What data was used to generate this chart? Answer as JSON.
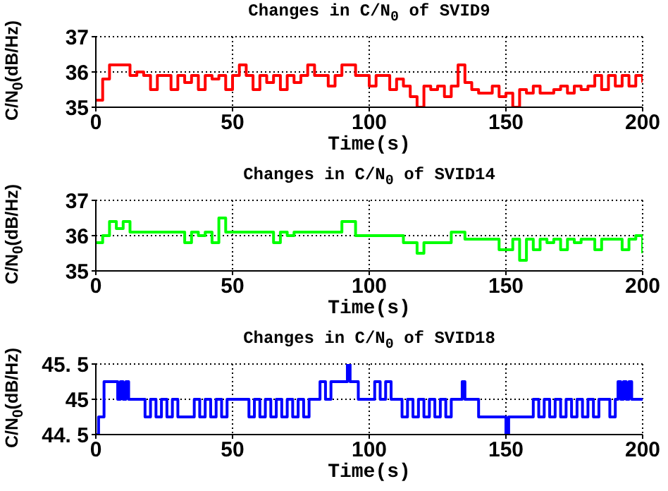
{
  "chart_data": [
    {
      "type": "step",
      "title": "Changes in C/N$_{0}$ of SVID9",
      "xlabel": "Time(s)",
      "ylabel": "C/N$_{0}$(dB/Hz)",
      "xlim": [
        0,
        200
      ],
      "xticks": [
        0,
        50,
        100,
        150,
        200
      ],
      "ylim": [
        35,
        37
      ],
      "yticks": [
        35,
        36,
        37
      ],
      "grid": true,
      "x": [
        0,
        2.5,
        5,
        7.5,
        10,
        12.5,
        15,
        17.5,
        20,
        22.5,
        25,
        27.5,
        30,
        32.5,
        35,
        37.5,
        40,
        42.5,
        45,
        47.5,
        50,
        52.5,
        55,
        57.5,
        60,
        62.5,
        65,
        67.5,
        70,
        72.5,
        75,
        77.5,
        80,
        82.5,
        85,
        87.5,
        90,
        92.5,
        95,
        97.5,
        100,
        102.5,
        105,
        107.5,
        110,
        112.5,
        115,
        117.5,
        120,
        122.5,
        125,
        127.5,
        130,
        132.5,
        135,
        137.5,
        140,
        142.5,
        145,
        147.5,
        150,
        152.5,
        155,
        157.5,
        160,
        162.5,
        165,
        167.5,
        170,
        172.5,
        175,
        177.5,
        180,
        182.5,
        185,
        187.5,
        190,
        192.5,
        195,
        197.5,
        200
      ],
      "series": [
        {
          "color": "#ff0000",
          "values": [
            35.2,
            35.8,
            36.2,
            36.2,
            36.2,
            35.9,
            36.0,
            35.9,
            35.5,
            35.9,
            35.9,
            35.5,
            35.9,
            35.7,
            35.9,
            35.5,
            35.9,
            35.8,
            35.9,
            35.5,
            35.9,
            36.2,
            35.9,
            35.5,
            35.9,
            35.7,
            35.9,
            35.5,
            35.9,
            35.7,
            35.9,
            36.2,
            35.9,
            35.9,
            35.6,
            35.9,
            36.2,
            36.2,
            35.9,
            35.9,
            35.6,
            35.9,
            35.9,
            35.5,
            35.8,
            35.6,
            35.3,
            35.0,
            35.6,
            35.5,
            35.6,
            35.3,
            35.6,
            36.2,
            35.7,
            35.5,
            35.4,
            35.4,
            35.6,
            35.3,
            35.4,
            35.0,
            35.5,
            35.4,
            35.6,
            35.4,
            35.4,
            35.5,
            35.6,
            35.4,
            35.6,
            35.5,
            35.6,
            35.9,
            35.5,
            35.9,
            35.6,
            35.9,
            35.6,
            35.9,
            35.7
          ]
        }
      ]
    },
    {
      "type": "step",
      "title": "Changes in C/N$_{0}$ of SVID14",
      "xlabel": "Time(s)",
      "ylabel": "C/N$_{0}$(dB/Hz)",
      "xlim": [
        0,
        200
      ],
      "xticks": [
        0,
        50,
        100,
        150,
        200
      ],
      "ylim": [
        35,
        37
      ],
      "yticks": [
        35,
        36,
        37
      ],
      "grid": true,
      "x": [
        0,
        2.5,
        5,
        7.5,
        10,
        12.5,
        15,
        17.5,
        20,
        22.5,
        25,
        27.5,
        30,
        32.5,
        35,
        37.5,
        40,
        42.5,
        45,
        47.5,
        50,
        52.5,
        55,
        57.5,
        60,
        62.5,
        65,
        67.5,
        70,
        72.5,
        75,
        77.5,
        80,
        82.5,
        85,
        87.5,
        90,
        92.5,
        95,
        97.5,
        100,
        102.5,
        105,
        107.5,
        110,
        112.5,
        115,
        117.5,
        120,
        122.5,
        125,
        127.5,
        130,
        132.5,
        135,
        137.5,
        140,
        142.5,
        145,
        147.5,
        150,
        152.5,
        155,
        157.5,
        160,
        162.5,
        165,
        167.5,
        170,
        172.5,
        175,
        177.5,
        180,
        182.5,
        185,
        187.5,
        190,
        192.5,
        195,
        197.5,
        200
      ],
      "series": [
        {
          "color": "#00ff00",
          "values": [
            35.8,
            36.0,
            36.4,
            36.2,
            36.4,
            36.1,
            36.1,
            36.1,
            36.1,
            36.1,
            36.1,
            36.1,
            36.1,
            35.8,
            36.1,
            36.0,
            36.1,
            35.8,
            36.5,
            36.1,
            36.1,
            36.1,
            36.1,
            36.1,
            36.1,
            36.1,
            35.8,
            36.1,
            36.0,
            36.1,
            36.1,
            36.1,
            36.1,
            36.1,
            36.1,
            36.1,
            36.4,
            36.4,
            36.0,
            36.0,
            36.0,
            36.0,
            36.0,
            36.0,
            36.0,
            35.8,
            35.8,
            35.5,
            35.8,
            35.8,
            35.8,
            35.8,
            36.1,
            36.1,
            35.9,
            35.9,
            35.9,
            35.9,
            35.9,
            35.6,
            35.6,
            35.9,
            35.3,
            35.9,
            35.6,
            35.9,
            35.8,
            35.9,
            35.6,
            35.9,
            35.8,
            35.9,
            35.9,
            35.6,
            35.9,
            35.9,
            35.9,
            35.6,
            35.9,
            36.0,
            35.5
          ]
        }
      ]
    },
    {
      "type": "step",
      "title": "Changes in C/N$_{0}$ of SVID18",
      "xlabel": "Time(s)",
      "ylabel": "C/N$_{0}$(dB/Hz)",
      "xlim": [
        0,
        200
      ],
      "xticks": [
        0,
        50,
        100,
        150,
        200
      ],
      "ylim": [
        44.5,
        45.5
      ],
      "yticks": [
        44.5,
        45,
        45.5
      ],
      "grid": true,
      "x": [
        0,
        1,
        2,
        3,
        5,
        7.5,
        8,
        9,
        10,
        11,
        12,
        14,
        17,
        18,
        20,
        22,
        24,
        26,
        28,
        30,
        35,
        36,
        38,
        40,
        42,
        44,
        46,
        48,
        50,
        55,
        56,
        58,
        60,
        62,
        64,
        66,
        68,
        70,
        72,
        74,
        76,
        78,
        80,
        82,
        84,
        86,
        88,
        90,
        91,
        92,
        93,
        95,
        96,
        100,
        102,
        104,
        106,
        108,
        110,
        112,
        114,
        116,
        118,
        120,
        122,
        124,
        126,
        128,
        130,
        134,
        135,
        136,
        140,
        150,
        151,
        158,
        160,
        162,
        164,
        166,
        168,
        170,
        172,
        174,
        176,
        178,
        180,
        182,
        184,
        186,
        188,
        190,
        191,
        192,
        193,
        194,
        195,
        196,
        200
      ],
      "series": [
        {
          "color": "#0000ff",
          "values": [
            44.5,
            44.75,
            44.75,
            45.25,
            45.25,
            45.25,
            45,
            45.25,
            45,
            45.25,
            45,
            45,
            45,
            44.75,
            45,
            44.75,
            45,
            44.75,
            45,
            44.75,
            44.75,
            45,
            44.75,
            45,
            44.75,
            45,
            44.75,
            45,
            45,
            45,
            44.75,
            45,
            44.75,
            45,
            44.75,
            45,
            44.75,
            45,
            44.75,
            45,
            44.75,
            45,
            45,
            45.25,
            45,
            45.25,
            45.25,
            45.25,
            45.25,
            45.5,
            45.25,
            45.25,
            45,
            45,
            45.25,
            45,
            45.25,
            45,
            45,
            44.75,
            45,
            44.75,
            45,
            44.75,
            45,
            44.75,
            45,
            44.75,
            45,
            45.25,
            45,
            45,
            44.75,
            44.5,
            44.75,
            44.75,
            45,
            44.75,
            45,
            44.75,
            45,
            44.75,
            45,
            44.75,
            45,
            44.75,
            45,
            44.75,
            45,
            45,
            44.75,
            45,
            45.25,
            45,
            45.25,
            45,
            45.25,
            45,
            45
          ]
        }
      ]
    }
  ]
}
